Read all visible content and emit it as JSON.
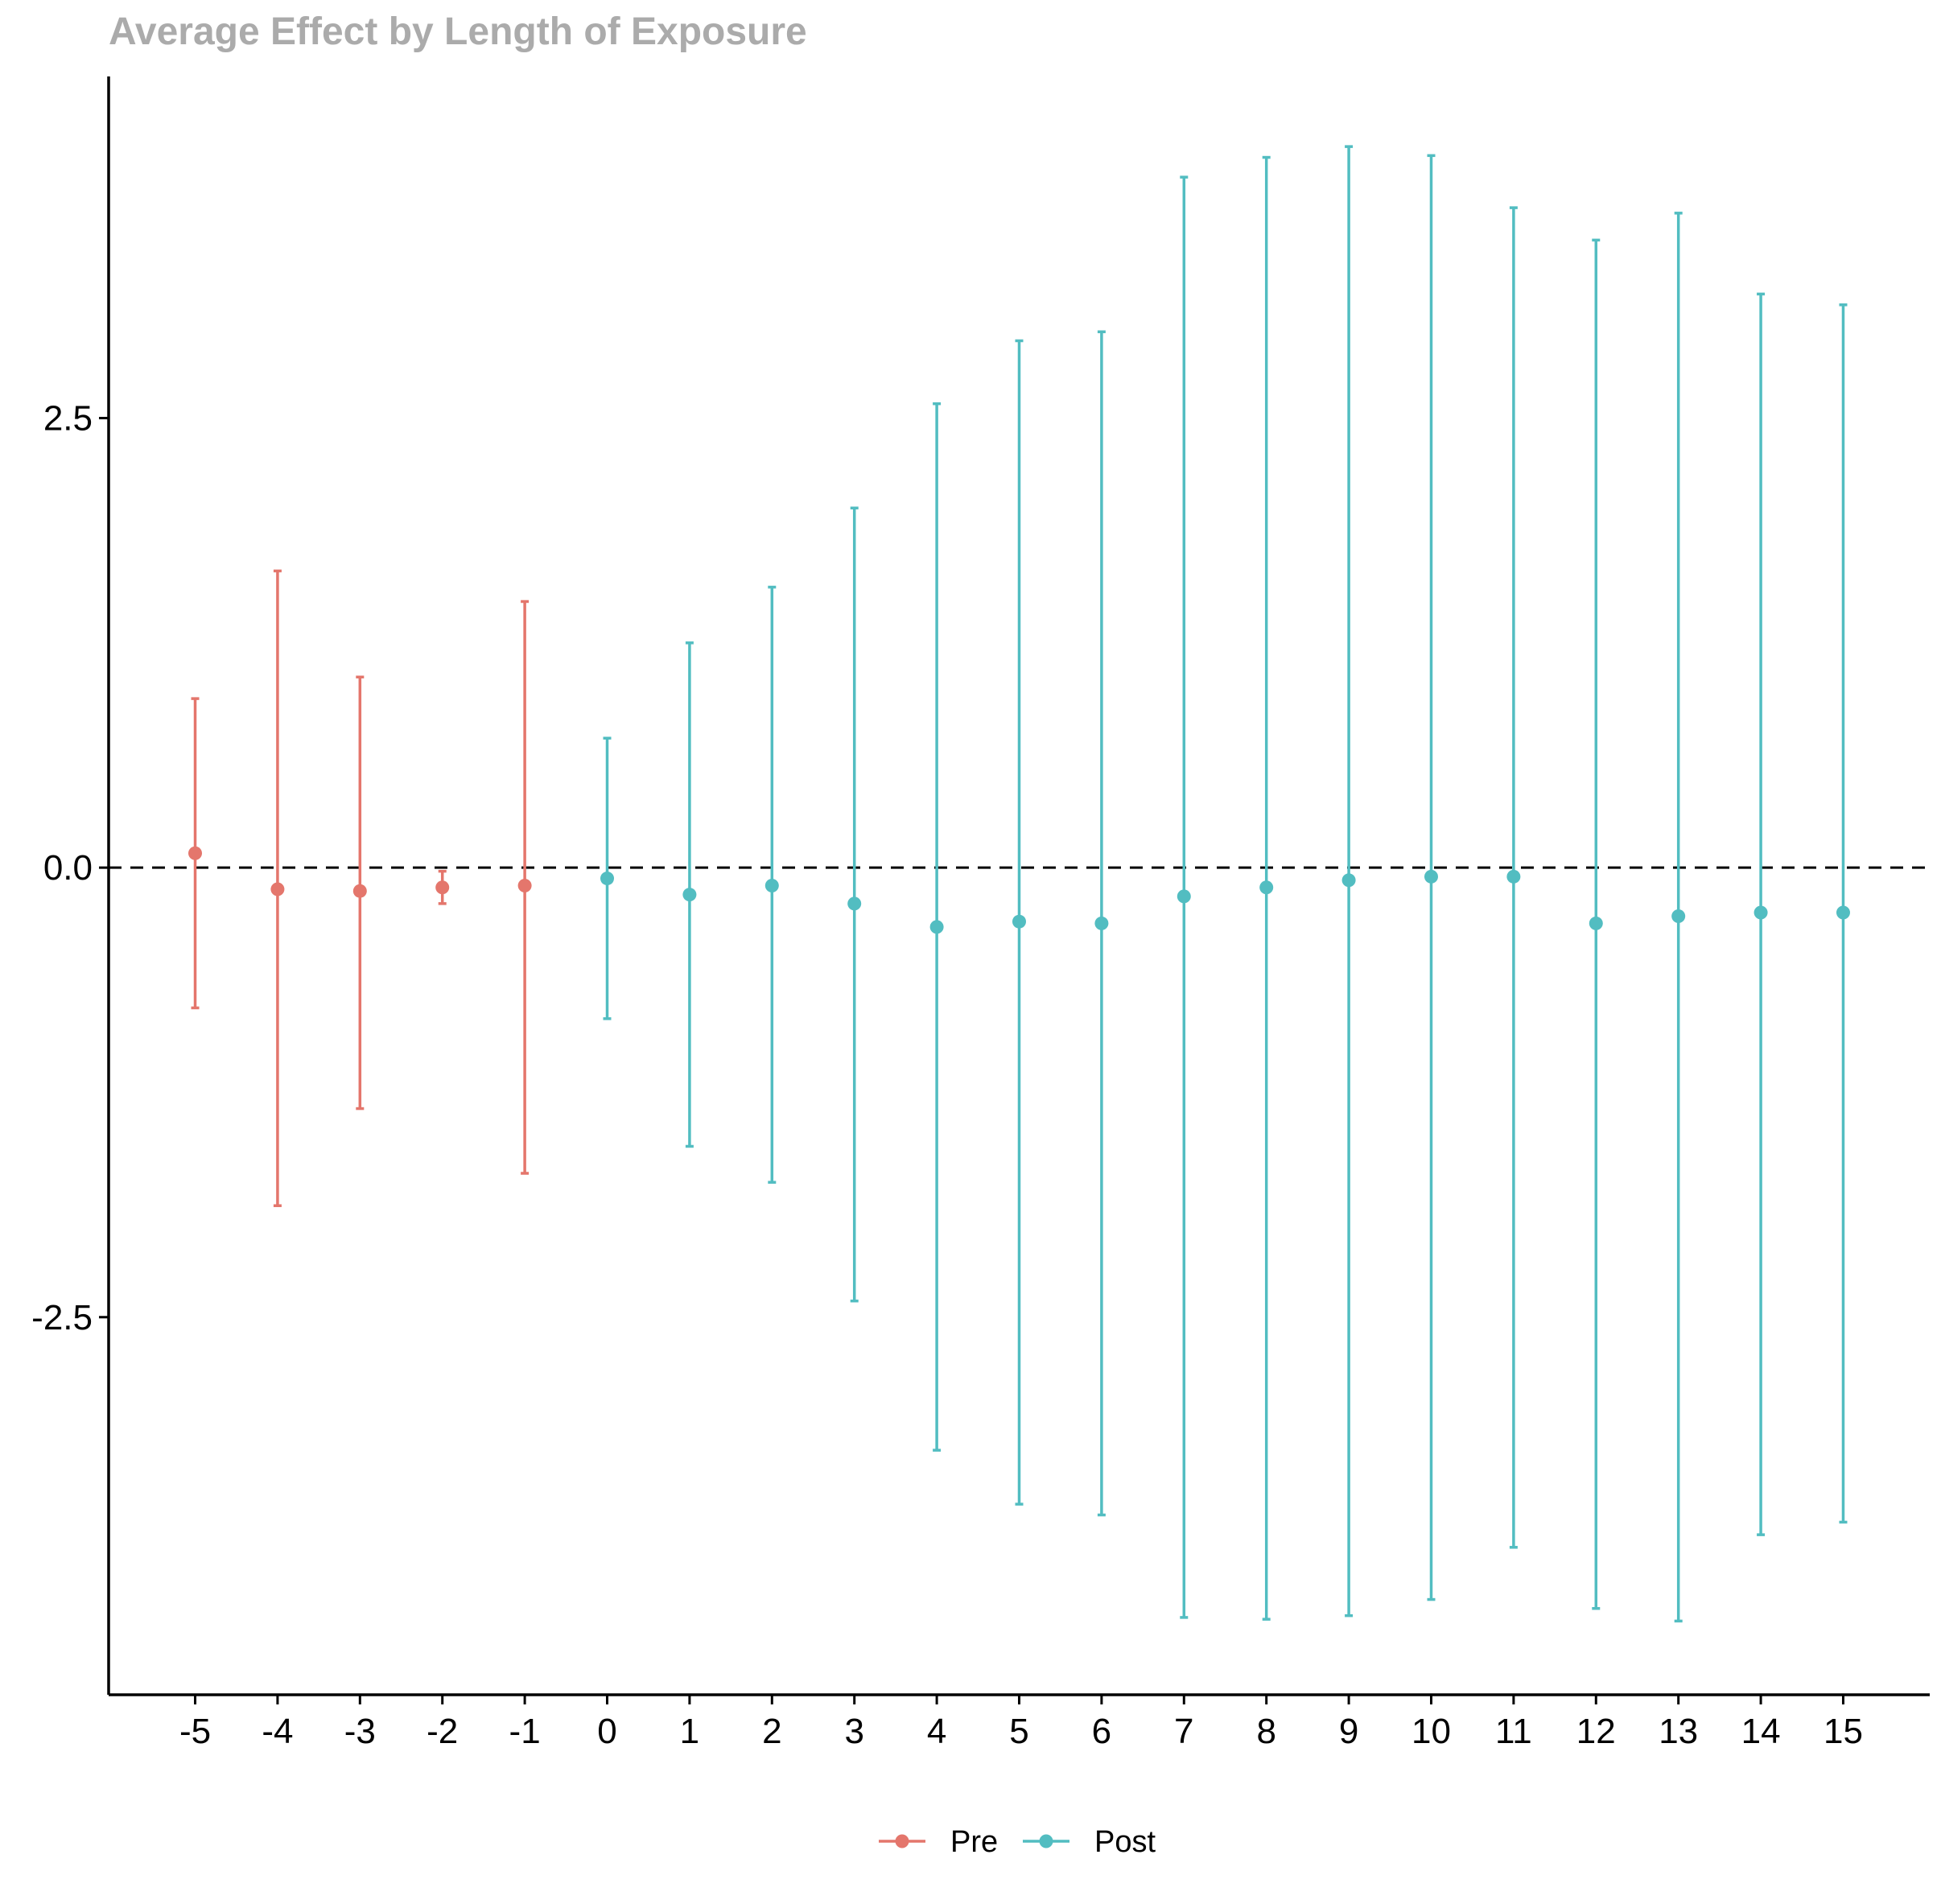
{
  "chart_data": {
    "type": "scatter",
    "title": "Average Effect by Length of Exposure",
    "xlabel": "",
    "ylabel": "",
    "x_ticks": [
      "-5",
      "-4",
      "-3",
      "-2",
      "-1",
      "0",
      "1",
      "2",
      "3",
      "4",
      "5",
      "6",
      "7",
      "8",
      "9",
      "10",
      "11",
      "12",
      "13",
      "14",
      "15"
    ],
    "y_ticks": [
      "-2.5",
      "0.0",
      "2.5"
    ],
    "xlim": [
      -6.05,
      16.05
    ],
    "ylim": [
      -4.6,
      4.4
    ],
    "reference_line": {
      "y": 0,
      "style": "dashed"
    },
    "grid": false,
    "legend_position": "bottom",
    "series": [
      {
        "name": "Pre",
        "color": "#E4766C",
        "points": [
          {
            "x": -5,
            "y": 0.08,
            "lower": -0.78,
            "upper": 0.94
          },
          {
            "x": -4,
            "y": -0.12,
            "lower": -1.88,
            "upper": 1.65
          },
          {
            "x": -3,
            "y": -0.13,
            "lower": -1.34,
            "upper": 1.06
          },
          {
            "x": -2,
            "y": -0.11,
            "lower": -0.2,
            "upper": -0.02
          },
          {
            "x": -1,
            "y": -0.1,
            "lower": -1.7,
            "upper": 1.48
          }
        ]
      },
      {
        "name": "Post",
        "color": "#52BDC1",
        "points": [
          {
            "x": 0,
            "y": -0.06,
            "lower": -0.84,
            "upper": 0.72
          },
          {
            "x": 1,
            "y": -0.15,
            "lower": -1.55,
            "upper": 1.25
          },
          {
            "x": 2,
            "y": -0.1,
            "lower": -1.75,
            "upper": 1.56
          },
          {
            "x": 3,
            "y": -0.2,
            "lower": -2.41,
            "upper": 2.0
          },
          {
            "x": 4,
            "y": -0.33,
            "lower": -3.24,
            "upper": 2.58
          },
          {
            "x": 5,
            "y": -0.3,
            "lower": -3.54,
            "upper": 2.93
          },
          {
            "x": 6,
            "y": -0.31,
            "lower": -3.6,
            "upper": 2.98
          },
          {
            "x": 7,
            "y": -0.16,
            "lower": -4.17,
            "upper": 3.84
          },
          {
            "x": 8,
            "y": -0.11,
            "lower": -4.18,
            "upper": 3.95
          },
          {
            "x": 9,
            "y": -0.07,
            "lower": -4.16,
            "upper": 4.01
          },
          {
            "x": 10,
            "y": -0.05,
            "lower": -4.07,
            "upper": 3.96
          },
          {
            "x": 11,
            "y": -0.05,
            "lower": -3.78,
            "upper": 3.67
          },
          {
            "x": 12,
            "y": -0.31,
            "lower": -4.12,
            "upper": 3.49
          },
          {
            "x": 13,
            "y": -0.27,
            "lower": -4.19,
            "upper": 3.64
          },
          {
            "x": 14,
            "y": -0.25,
            "lower": -3.71,
            "upper": 3.19
          },
          {
            "x": 15,
            "y": -0.25,
            "lower": -3.64,
            "upper": 3.13
          }
        ]
      }
    ]
  }
}
